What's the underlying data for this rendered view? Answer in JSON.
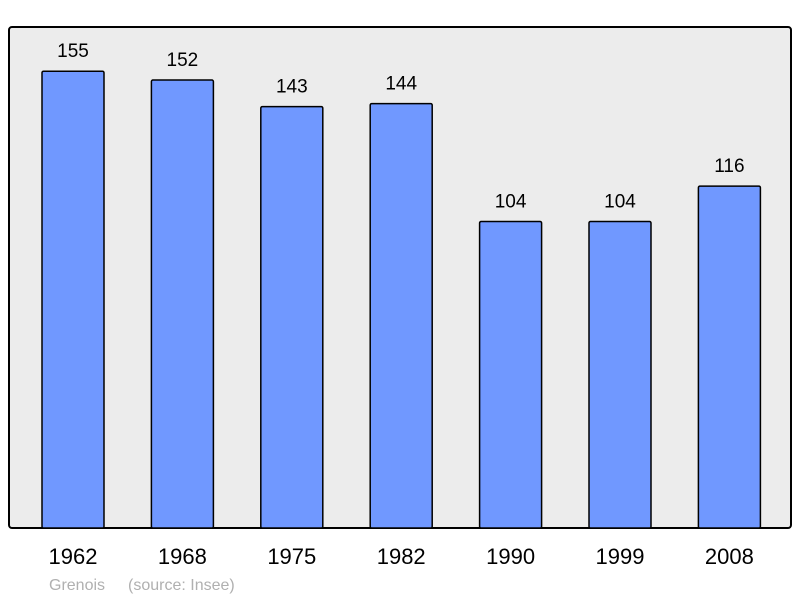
{
  "chart_data": {
    "type": "bar",
    "categories": [
      "1962",
      "1968",
      "1975",
      "1982",
      "1990",
      "1999",
      "2008"
    ],
    "values": [
      155,
      152,
      143,
      144,
      104,
      104,
      116
    ],
    "title": "",
    "xlabel": "",
    "ylabel": "",
    "ylim": [
      0,
      170
    ],
    "grid": false,
    "legend": "none",
    "colors": {
      "bar": "#7098ff",
      "plot_background": "#ececec",
      "border": "#000000"
    },
    "footer": {
      "place": "Grenois",
      "source": "(source: Insee)"
    }
  }
}
